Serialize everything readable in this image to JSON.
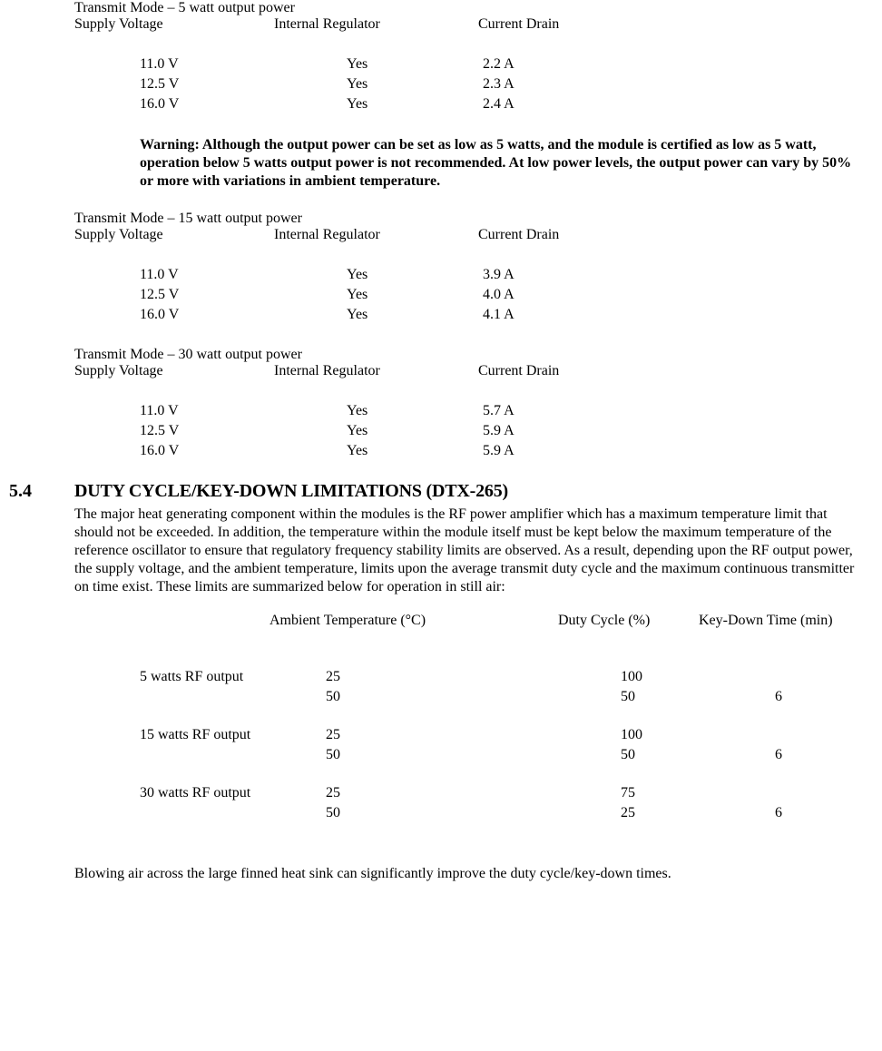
{
  "modes": {
    "m5": {
      "title": "Transmit Mode – 5 watt output power",
      "header": {
        "sv": "Supply Voltage",
        "ir": "Internal Regulator",
        "cd": "Current Drain"
      },
      "rows": [
        {
          "sv": "11.0 V",
          "ir": "Yes",
          "cd": "2.2 A"
        },
        {
          "sv": "12.5 V",
          "ir": "Yes",
          "cd": "2.3 A"
        },
        {
          "sv": "16.0 V",
          "ir": "Yes",
          "cd": "2.4 A"
        }
      ]
    },
    "m15": {
      "title": "Transmit Mode – 15 watt output power",
      "header": {
        "sv": "Supply Voltage",
        "ir": "Internal Regulator",
        "cd": "Current Drain"
      },
      "rows": [
        {
          "sv": "11.0 V",
          "ir": "Yes",
          "cd": "3.9 A"
        },
        {
          "sv": "12.5 V",
          "ir": "Yes",
          "cd": "4.0 A"
        },
        {
          "sv": "16.0 V",
          "ir": "Yes",
          "cd": "4.1 A"
        }
      ]
    },
    "m30": {
      "title": "Transmit Mode – 30 watt output power",
      "header": {
        "sv": "Supply Voltage",
        "ir": "Internal Regulator",
        "cd": "Current Drain"
      },
      "rows": [
        {
          "sv": "11.0 V",
          "ir": "Yes",
          "cd": "5.7 A"
        },
        {
          "sv": "12.5 V",
          "ir": "Yes",
          "cd": "5.9 A"
        },
        {
          "sv": "16.0 V",
          "ir": "Yes",
          "cd": "5.9 A"
        }
      ]
    }
  },
  "warning": "Warning:  Although the output power can be set as low as 5 watts, and the module is certified as low as 5 watt, operation below 5 watts output power is not recommended.  At low power levels, the output power can vary by 50% or more with variations in ambient temperature.",
  "section": {
    "num": "5.4",
    "title": "DUTY CYCLE/KEY-DOWN LIMITATIONS (DTX-265)",
    "para": "The major heat generating component within the modules is the RF power amplifier which has a maximum temperature limit that should not be exceeded.  In addition, the temperature within the module itself must be kept below the maximum temperature of the reference oscillator to ensure that regulatory frequency stability limits are observed.  As a result, depending upon the RF output power, the supply voltage, and the ambient temperature, limits upon the average transmit duty cycle and the maximum continuous transmitter on time exist.  These limits are summarized below for operation in still air:"
  },
  "duty": {
    "header": {
      "temp": "Ambient Temperature (°C)",
      "dc": "Duty Cycle (%)",
      "kd": "Key-Down Time (min)"
    },
    "groups": [
      {
        "label": "5 watts RF output",
        "rows": [
          {
            "t": "25",
            "dc": "100",
            "kd": ""
          },
          {
            "t": "50",
            "dc": "50",
            "kd": "6"
          }
        ]
      },
      {
        "label": "15 watts RF output",
        "rows": [
          {
            "t": "25",
            "dc": "100",
            "kd": ""
          },
          {
            "t": "50",
            "dc": "50",
            "kd": "6"
          }
        ]
      },
      {
        "label": "30 watts RF output",
        "rows": [
          {
            "t": "25",
            "dc": "75",
            "kd": ""
          },
          {
            "t": "50",
            "dc": "25",
            "kd": "6"
          }
        ]
      }
    ]
  },
  "footer": "Blowing air across the large finned heat sink can significantly improve the duty cycle/key-down times."
}
